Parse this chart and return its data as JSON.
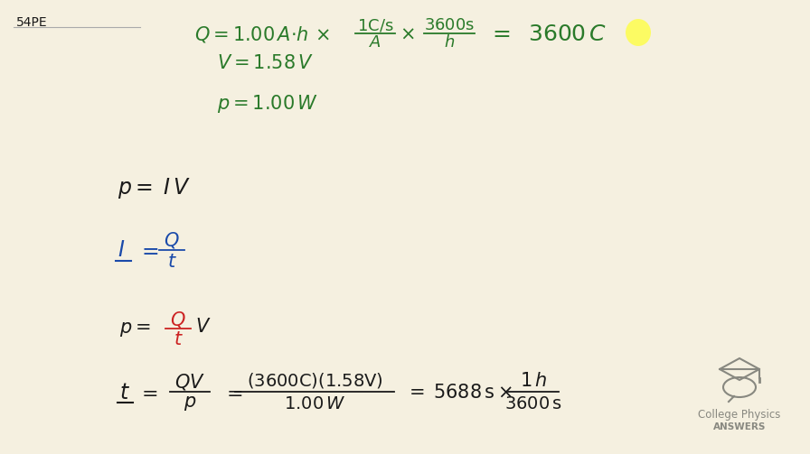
{
  "bg_color": "#f5f0e0",
  "text_color_green": "#2a7a2a",
  "text_color_black": "#1a1a1a",
  "text_color_blue": "#1a4aaa",
  "text_color_red": "#cc2222",
  "text_color_gray": "#888880",
  "highlight_color": "#ffff44",
  "label_54pe": "54PE",
  "logo_text1": "College Physics",
  "logo_text2": "ANSWERS"
}
